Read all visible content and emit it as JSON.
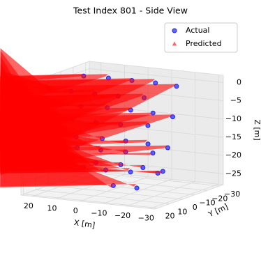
{
  "chart_data": {
    "type": "scatter3d",
    "title": "Test Index 801 - Side View",
    "x_label": "X [m]",
    "y_label": "Y [m]",
    "z_label": "Z [m]",
    "xlim": [
      -32,
      25
    ],
    "ylim": [
      -33,
      22
    ],
    "zlim": [
      -28,
      2
    ],
    "xticks": [
      {
        "value": -30,
        "label": "−30"
      },
      {
        "value": -20,
        "label": "−20"
      },
      {
        "value": -10,
        "label": "−10"
      },
      0,
      10,
      20
    ],
    "yticks": [
      {
        "value": -30,
        "label": "−30"
      },
      {
        "value": -20,
        "label": "−20"
      },
      {
        "value": -10,
        "label": "−10"
      },
      0,
      10,
      20
    ],
    "zticks": [
      {
        "value": -25,
        "label": "−25"
      },
      {
        "value": -20,
        "label": "−20"
      },
      {
        "value": -15,
        "label": "−15"
      },
      {
        "value": -10,
        "label": "−10"
      },
      {
        "value": -5,
        "label": "−5"
      },
      0
    ],
    "grid": true,
    "legend": "upper right",
    "series": [
      {
        "name": "Actual",
        "color": "#0000ff",
        "marker": "circle",
        "x": [
          20,
          20,
          20,
          20,
          20,
          20,
          20,
          20,
          10,
          10,
          10,
          10,
          10,
          10,
          10,
          10,
          0,
          0,
          0,
          0,
          0,
          0,
          0,
          0,
          -10,
          -10,
          -10,
          -10,
          -10,
          -10,
          -10,
          -10,
          -20,
          -20,
          -20,
          -20,
          -20,
          -20,
          -20,
          -20,
          0,
          -10
        ],
        "y": [
          9,
          -19,
          7,
          -17,
          3,
          -13,
          -2,
          -8,
          10,
          -20,
          9,
          -19,
          5,
          -15,
          0,
          -10,
          10,
          -20,
          9,
          -19,
          5,
          -15,
          1,
          -11,
          10,
          -20,
          8,
          -18,
          4,
          -14,
          0,
          -10,
          8,
          -18,
          5,
          -15,
          1,
          -11,
          -3,
          -7,
          -5,
          -5
        ],
        "z": [
          0,
          0,
          -8,
          -8,
          -16,
          -16,
          -22,
          -22,
          0,
          0,
          -8,
          -8,
          -16,
          -16,
          -22,
          -22,
          0,
          0,
          -8,
          -8,
          -16,
          -16,
          -22,
          -22,
          0,
          0,
          -8,
          -8,
          -16,
          -16,
          -22,
          -22,
          0,
          0,
          -8,
          -8,
          -16,
          -16,
          -22,
          -22,
          -27,
          -27
        ]
      },
      {
        "name": "Predicted",
        "color": "#ff0000",
        "marker": "triangle",
        "x": [
          20,
          20,
          20,
          20,
          20,
          20,
          20,
          20,
          10,
          10,
          10,
          10,
          10,
          10,
          10,
          10,
          0,
          0,
          0,
          0,
          0,
          0,
          0,
          0,
          -10,
          -10,
          -10,
          -10,
          -10,
          -10,
          -10,
          -10,
          -20,
          -20,
          -20,
          -20,
          -20,
          -20,
          -20,
          -20,
          0,
          -10
        ],
        "y": [
          9.5,
          -18.5,
          7.5,
          -17.5,
          3.5,
          -12.5,
          -1.5,
          -8.5,
          10.5,
          -19.5,
          9,
          -18.5,
          5.5,
          -15,
          0.5,
          -9.5,
          10,
          -19.5,
          9.5,
          -19,
          5,
          -14.5,
          1.5,
          -11,
          10.5,
          -19.5,
          8.5,
          -17.5,
          4,
          -13.5,
          0.5,
          -10,
          8.5,
          -17.5,
          5,
          -14.5,
          1.5,
          -10.5,
          -2.5,
          -7,
          -5,
          -4.5
        ],
        "z": [
          0.5,
          0,
          -7.5,
          -8.5,
          -16,
          -15.5,
          -22.5,
          -21.5,
          0,
          0.5,
          -8,
          -7.5,
          -16.5,
          -16,
          -22,
          -22.5,
          0.5,
          0,
          -8.5,
          -8,
          -15.5,
          -16.5,
          -22.5,
          -22,
          0,
          0.5,
          -8,
          -8.5,
          -16,
          -15.5,
          -21.5,
          -22,
          0.5,
          0,
          -7.5,
          -8,
          -16.5,
          -16,
          -22,
          -22.5,
          -27.5,
          -26.5
        ]
      }
    ]
  }
}
